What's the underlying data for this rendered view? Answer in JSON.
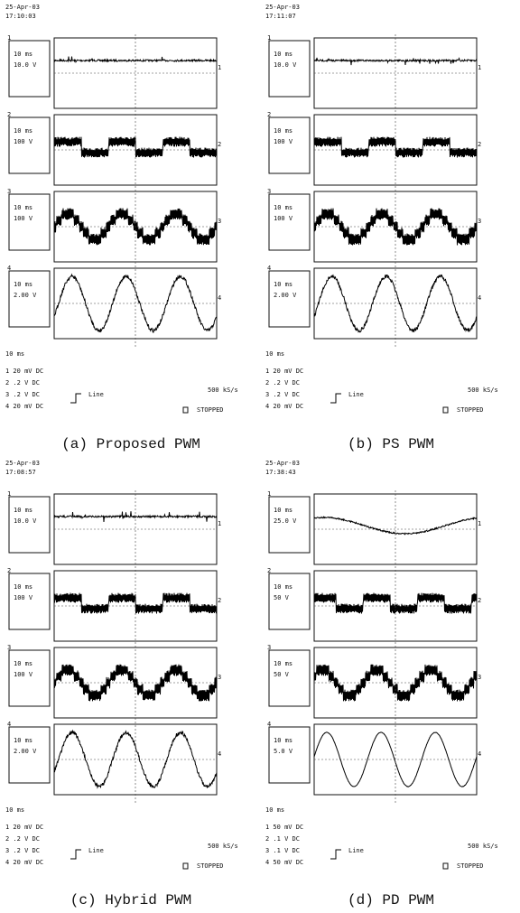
{
  "panels": [
    {
      "caption": "(a) Proposed PWM",
      "date": "25-Apr-03",
      "time": "17:10:03",
      "channels": [
        {
          "number": "1",
          "timebase": "10 ms",
          "scale": "10.0 V"
        },
        {
          "number": "2",
          "timebase": "10 ms",
          "scale": "100 V"
        },
        {
          "number": "3",
          "timebase": "10 ms",
          "scale": "100 V"
        },
        {
          "number": "4",
          "timebase": "10 ms",
          "scale": "2.00 V"
        }
      ],
      "footer_timebase": "10 ms",
      "settings": [
        "1 20 mV DC",
        "2 .2 V DC",
        "3 .2 V DC",
        "4 20 mV DC"
      ],
      "trigger": "Line",
      "rate": "500 kS/s",
      "status": "STOPPED"
    },
    {
      "caption": "(b) PS PWM",
      "date": "25-Apr-03",
      "time": "17:11:07",
      "channels": [
        {
          "number": "1",
          "timebase": "10 ms",
          "scale": "10.0 V"
        },
        {
          "number": "2",
          "timebase": "10 ms",
          "scale": "100 V"
        },
        {
          "number": "3",
          "timebase": "10 ms",
          "scale": "100 V"
        },
        {
          "number": "4",
          "timebase": "10 ms",
          "scale": "2.00 V"
        }
      ],
      "footer_timebase": "10 ms",
      "settings": [
        "1 20 mV DC",
        "2 .2 V DC",
        "3 .2 V DC",
        "4 20 mV DC"
      ],
      "trigger": "Line",
      "rate": "500 kS/s",
      "status": "STOPPED"
    },
    {
      "caption": "(c) Hybrid PWM",
      "date": "25-Apr-03",
      "time": "17:08:57",
      "channels": [
        {
          "number": "1",
          "timebase": "10 ms",
          "scale": "10.0 V"
        },
        {
          "number": "2",
          "timebase": "10 ms",
          "scale": "100 V"
        },
        {
          "number": "3",
          "timebase": "10 ms",
          "scale": "100 V"
        },
        {
          "number": "4",
          "timebase": "10 ms",
          "scale": "2.00 V"
        }
      ],
      "footer_timebase": "10 ms",
      "settings": [
        "1 20 mV DC",
        "2 .2 V DC",
        "3 .2 V DC",
        "4 20 mV DC"
      ],
      "trigger": "Line",
      "rate": "500 kS/s",
      "status": "STOPPED"
    },
    {
      "caption": "(d) PD PWM",
      "date": "25-Apr-03",
      "time": "17:38:43",
      "channels": [
        {
          "number": "1",
          "timebase": "10 ms",
          "scale": "25.0 V"
        },
        {
          "number": "2",
          "timebase": "10 ms",
          "scale": "50 V"
        },
        {
          "number": "3",
          "timebase": "10 ms",
          "scale": "50 V"
        },
        {
          "number": "4",
          "timebase": "10 ms",
          "scale": "5.0 V"
        }
      ],
      "footer_timebase": "10 ms",
      "settings": [
        "1 50 mV DC",
        "2 .1 V DC",
        "3 .1 V DC",
        "4 50 mV DC"
      ],
      "trigger": "Line",
      "rate": "500 kS/s",
      "status": "STOPPED"
    }
  ]
}
